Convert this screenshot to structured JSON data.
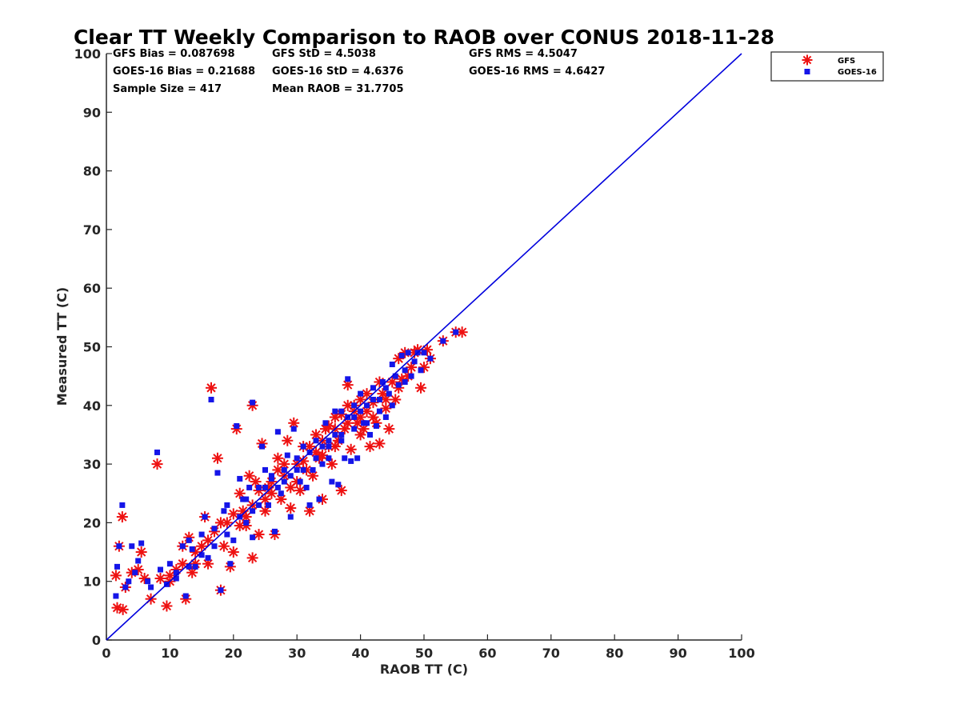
{
  "chart_data": {
    "type": "scatter",
    "title": "Clear TT Weekly Comparison to RAOB over CONUS 2018-11-28",
    "xlabel": "RAOB TT (C)",
    "ylabel": "Measured TT (C)",
    "xlim": [
      0,
      100
    ],
    "ylim": [
      0,
      100
    ],
    "xticks": [
      0,
      10,
      20,
      30,
      40,
      50,
      60,
      70,
      80,
      90,
      100
    ],
    "yticks": [
      0,
      10,
      20,
      30,
      40,
      50,
      60,
      70,
      80,
      90,
      100
    ],
    "grid": false,
    "legend_position": "outside-top-right",
    "stats": {
      "gfs_bias": "GFS Bias = 0.087698",
      "gfs_std": "GFS StD = 4.5038",
      "gfs_rms": "GFS RMS = 4.5047",
      "goes_bias": "GOES-16 Bias = 0.21688",
      "goes_std": "GOES-16 StD = 4.6376",
      "goes_rms": "GOES-16 RMS = 4.6427",
      "sample_size": "Sample Size = 417",
      "mean_raob": "Mean RAOB = 31.7705"
    },
    "reference_line": {
      "name": "1:1",
      "x": [
        0,
        100
      ],
      "y": [
        0,
        100
      ],
      "color": "#0000dd"
    },
    "series": [
      {
        "name": "GFS",
        "marker": "asterisk",
        "color": "#ee1111",
        "points": [
          [
            1.5,
            11
          ],
          [
            1.7,
            5.5
          ],
          [
            2,
            16
          ],
          [
            2.5,
            21
          ],
          [
            2.6,
            5.2
          ],
          [
            3,
            9
          ],
          [
            4,
            11.5
          ],
          [
            5,
            12
          ],
          [
            5.5,
            15
          ],
          [
            6,
            10.5
          ],
          [
            7,
            7
          ],
          [
            8,
            30
          ],
          [
            8.5,
            10.5
          ],
          [
            9.5,
            5.8
          ],
          [
            10,
            10
          ],
          [
            11,
            12
          ],
          [
            12,
            16
          ],
          [
            12.5,
            7
          ],
          [
            13,
            17.5
          ],
          [
            13.5,
            11.5
          ],
          [
            14,
            13
          ],
          [
            15,
            16
          ],
          [
            15.5,
            21
          ],
          [
            16,
            13
          ],
          [
            16.5,
            43
          ],
          [
            17,
            18.5
          ],
          [
            17.5,
            31
          ],
          [
            18,
            8.5
          ],
          [
            18.5,
            16
          ],
          [
            19,
            20
          ],
          [
            19.5,
            12.5
          ],
          [
            20,
            15
          ],
          [
            20.5,
            36
          ],
          [
            21,
            25
          ],
          [
            21.5,
            22
          ],
          [
            22,
            19.5
          ],
          [
            22.5,
            28
          ],
          [
            23,
            14
          ],
          [
            23,
            40
          ],
          [
            23.5,
            27
          ],
          [
            24,
            18
          ],
          [
            24.5,
            33.5
          ],
          [
            25,
            22
          ],
          [
            25.5,
            26
          ],
          [
            26,
            25
          ],
          [
            26.5,
            18
          ],
          [
            27,
            31
          ],
          [
            27.5,
            24
          ],
          [
            28,
            28
          ],
          [
            28.5,
            34
          ],
          [
            29,
            22.5
          ],
          [
            29.5,
            37
          ],
          [
            30,
            30
          ],
          [
            30.5,
            25.5
          ],
          [
            31,
            33
          ],
          [
            31.5,
            29
          ],
          [
            32,
            22
          ],
          [
            32.5,
            28
          ],
          [
            33,
            35
          ],
          [
            33.5,
            31
          ],
          [
            34,
            24
          ],
          [
            34.5,
            36
          ],
          [
            35,
            33
          ],
          [
            35.5,
            30
          ],
          [
            36,
            38
          ],
          [
            36.5,
            34
          ],
          [
            37,
            25.5
          ],
          [
            37.5,
            36
          ],
          [
            38,
            43.5
          ],
          [
            38.5,
            32.5
          ],
          [
            39,
            39
          ],
          [
            39.5,
            37
          ],
          [
            40,
            41
          ],
          [
            40.5,
            36
          ],
          [
            41,
            39
          ],
          [
            41.5,
            33
          ],
          [
            42,
            40.5
          ],
          [
            42.5,
            37
          ],
          [
            43,
            33.5
          ],
          [
            43.5,
            42
          ],
          [
            44,
            39.5
          ],
          [
            44.5,
            36
          ],
          [
            45,
            44
          ],
          [
            45.5,
            41
          ],
          [
            46,
            48
          ],
          [
            46.5,
            44.5
          ],
          [
            47,
            49
          ],
          [
            47.5,
            45
          ],
          [
            48,
            46.5
          ],
          [
            48.5,
            49
          ],
          [
            49,
            49.5
          ],
          [
            49.5,
            43
          ],
          [
            50,
            46.5
          ],
          [
            50.5,
            49.5
          ],
          [
            51,
            48
          ],
          [
            53,
            51
          ],
          [
            55,
            52.5
          ],
          [
            56,
            52.5
          ],
          [
            31,
            30.5
          ],
          [
            33,
            32
          ],
          [
            35,
            36.5
          ],
          [
            37,
            38.5
          ],
          [
            39,
            40
          ],
          [
            41,
            42
          ],
          [
            43,
            44
          ],
          [
            38,
            40
          ],
          [
            40,
            38
          ],
          [
            36,
            36
          ],
          [
            34,
            34
          ],
          [
            32,
            33
          ],
          [
            28,
            30
          ],
          [
            26,
            27
          ],
          [
            24,
            25.5
          ],
          [
            22,
            21
          ],
          [
            20,
            21.5
          ],
          [
            18,
            20
          ],
          [
            16,
            17
          ],
          [
            14,
            15
          ],
          [
            12,
            13
          ],
          [
            10,
            11
          ],
          [
            44,
            41
          ],
          [
            46,
            43
          ],
          [
            42,
            38
          ],
          [
            40,
            35
          ],
          [
            38,
            37
          ],
          [
            36,
            33
          ],
          [
            34,
            31.5
          ],
          [
            30,
            27
          ],
          [
            29,
            26
          ],
          [
            27,
            29
          ],
          [
            25,
            24
          ],
          [
            23,
            23
          ],
          [
            21,
            19.5
          ]
        ]
      },
      {
        "name": "GOES-16",
        "marker": "square",
        "color": "#1515e8",
        "points": [
          [
            1.5,
            7.5
          ],
          [
            1.7,
            12.5
          ],
          [
            2,
            16
          ],
          [
            2.5,
            23
          ],
          [
            3,
            9
          ],
          [
            3.5,
            10
          ],
          [
            4,
            16
          ],
          [
            4.5,
            11.5
          ],
          [
            5,
            13.5
          ],
          [
            5.5,
            16.5
          ],
          [
            6.5,
            10
          ],
          [
            7,
            9
          ],
          [
            8,
            32
          ],
          [
            8.5,
            12
          ],
          [
            9.5,
            9.5
          ],
          [
            10,
            13
          ],
          [
            11,
            11.5
          ],
          [
            12,
            16
          ],
          [
            12.5,
            7.5
          ],
          [
            13,
            17
          ],
          [
            13.5,
            15.5
          ],
          [
            14,
            12.5
          ],
          [
            15,
            18
          ],
          [
            15.5,
            21
          ],
          [
            16,
            14
          ],
          [
            16.5,
            41
          ],
          [
            17,
            19
          ],
          [
            17.5,
            28.5
          ],
          [
            18,
            8.5
          ],
          [
            18.5,
            22
          ],
          [
            19,
            23
          ],
          [
            19.5,
            13
          ],
          [
            20,
            17
          ],
          [
            20.5,
            36.5
          ],
          [
            21,
            27.5
          ],
          [
            21.5,
            24
          ],
          [
            22,
            20
          ],
          [
            22.5,
            26
          ],
          [
            23,
            17.5
          ],
          [
            23,
            40.5
          ],
          [
            24,
            26
          ],
          [
            24.5,
            33
          ],
          [
            25,
            29
          ],
          [
            25.5,
            23
          ],
          [
            26,
            27.5
          ],
          [
            26.5,
            18.5
          ],
          [
            27,
            35.5
          ],
          [
            27.5,
            25
          ],
          [
            28,
            29
          ],
          [
            28.5,
            31.5
          ],
          [
            29,
            21
          ],
          [
            29.5,
            36
          ],
          [
            30,
            31
          ],
          [
            30.5,
            27
          ],
          [
            31,
            33
          ],
          [
            31.5,
            26
          ],
          [
            32,
            23
          ],
          [
            32.5,
            29
          ],
          [
            33,
            34
          ],
          [
            33.5,
            24
          ],
          [
            34,
            30
          ],
          [
            34.5,
            37
          ],
          [
            35,
            33
          ],
          [
            35.5,
            27
          ],
          [
            36,
            39
          ],
          [
            36.5,
            26.5
          ],
          [
            37,
            34
          ],
          [
            37.5,
            31
          ],
          [
            38,
            44.5
          ],
          [
            38.5,
            30.5
          ],
          [
            39,
            40
          ],
          [
            39.5,
            31
          ],
          [
            40,
            42
          ],
          [
            40.5,
            37
          ],
          [
            41,
            40
          ],
          [
            41.5,
            35
          ],
          [
            42,
            43
          ],
          [
            42.5,
            36.5
          ],
          [
            43,
            41
          ],
          [
            43.5,
            44
          ],
          [
            44,
            38
          ],
          [
            44.5,
            42
          ],
          [
            45,
            47
          ],
          [
            45.5,
            45
          ],
          [
            46,
            43.5
          ],
          [
            46.5,
            48.5
          ],
          [
            47,
            46
          ],
          [
            47.5,
            49
          ],
          [
            48,
            45
          ],
          [
            48.5,
            47.5
          ],
          [
            49,
            49
          ],
          [
            49.5,
            46
          ],
          [
            50,
            49
          ],
          [
            51,
            48
          ],
          [
            53,
            51
          ],
          [
            55,
            52.5
          ],
          [
            32,
            32
          ],
          [
            34,
            33
          ],
          [
            36,
            35
          ],
          [
            38,
            38
          ],
          [
            40,
            39
          ],
          [
            42,
            41
          ],
          [
            44,
            43
          ],
          [
            37,
            39
          ],
          [
            39,
            36
          ],
          [
            35,
            34
          ],
          [
            33,
            31
          ],
          [
            31,
            29
          ],
          [
            29,
            28
          ],
          [
            27,
            26
          ],
          [
            25,
            26
          ],
          [
            23,
            22
          ],
          [
            21,
            21
          ],
          [
            19,
            18
          ],
          [
            17,
            16
          ],
          [
            15,
            14.5
          ],
          [
            13,
            12.5
          ],
          [
            11,
            10.5
          ],
          [
            45,
            40
          ],
          [
            47,
            44
          ],
          [
            43,
            39
          ],
          [
            41,
            37
          ],
          [
            39,
            38
          ],
          [
            37,
            35
          ],
          [
            35,
            31
          ],
          [
            30,
            29
          ],
          [
            28,
            27
          ],
          [
            26,
            28
          ],
          [
            24,
            23
          ],
          [
            22,
            24
          ]
        ]
      }
    ]
  }
}
